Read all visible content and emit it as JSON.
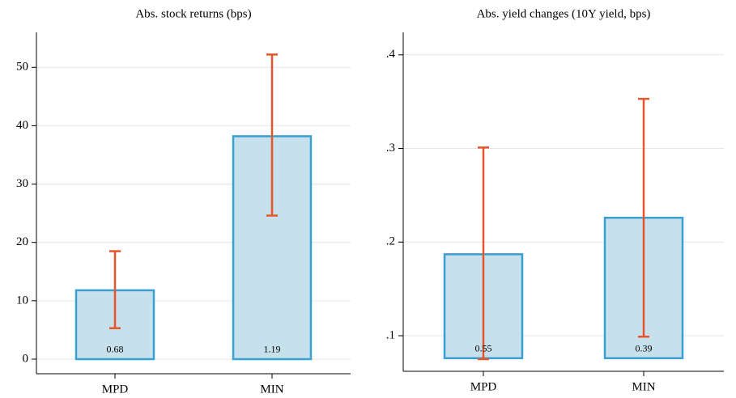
{
  "chart_data": [
    {
      "type": "bar",
      "title": "Abs. stock returns (bps)",
      "categories": [
        "MPD",
        "MIN"
      ],
      "values": [
        11.8,
        38.2
      ],
      "bar_base": 0,
      "ci_low": [
        5.3,
        24.6
      ],
      "ci_high": [
        18.5,
        52.2
      ],
      "annotations": [
        "0.68",
        "1.19"
      ],
      "color": "#c6e0ec",
      "edge_color": "#3a9fd1",
      "error_color": "#e8552b",
      "ylim": [
        -2.5,
        56
      ],
      "yticks": [
        0,
        10,
        20,
        30,
        40,
        50
      ],
      "grid": true
    },
    {
      "type": "bar",
      "title": "Abs. yield changes (10Y yield, bps)",
      "categories": [
        "MPD",
        "MIN"
      ],
      "values": [
        0.187,
        0.226
      ],
      "bar_base": 0.076,
      "ci_low": [
        0.075,
        0.099
      ],
      "ci_high": [
        0.301,
        0.353
      ],
      "annotations": [
        "0.55",
        "0.39"
      ],
      "color": "#c6e0ec",
      "edge_color": "#3a9fd1",
      "error_color": "#e8552b",
      "ylim": [
        0.062,
        0.424
      ],
      "yticks": [
        {
          "value": 0.1,
          "label": ".1"
        },
        {
          "value": 0.2,
          "label": ".2"
        },
        {
          "value": 0.3,
          "label": ".3"
        },
        {
          "value": 0.4,
          "label": ".4"
        }
      ],
      "grid": true
    }
  ]
}
